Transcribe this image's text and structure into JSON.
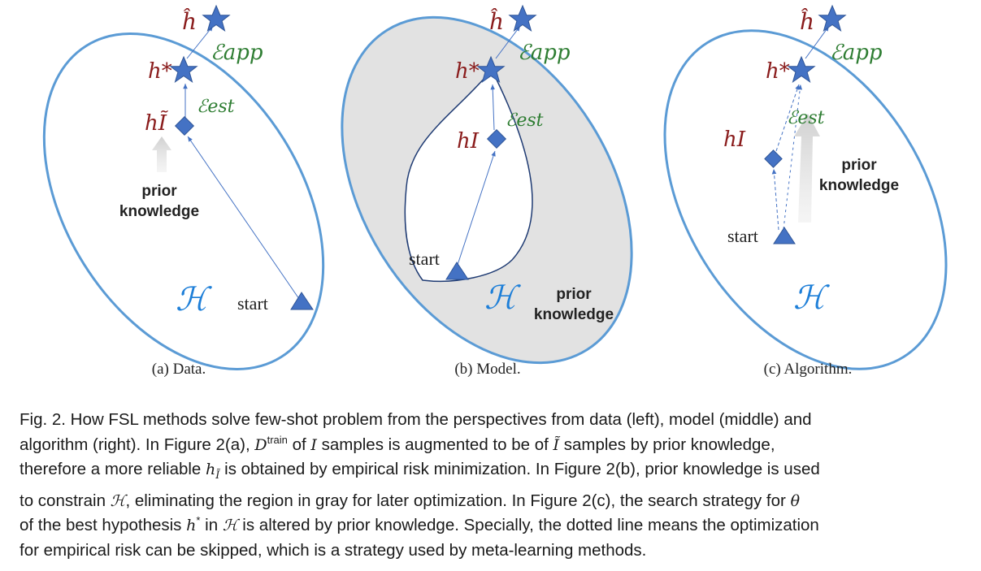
{
  "panels": [
    {
      "subcaption": "(a)  Data.",
      "h_hat": "ĥ",
      "h_star": "h*",
      "h_mid": "hĨ",
      "eps_app": "ℰapp",
      "eps_est": "ℰest",
      "prior_knowledge": [
        "prior",
        "knowledge"
      ],
      "hypothesis_space": "ℋ",
      "start": "start"
    },
    {
      "subcaption": "(b)  Model.",
      "h_hat": "ĥ",
      "h_star": "h*",
      "h_mid": "hI",
      "eps_app": "ℰapp",
      "eps_est": "ℰest",
      "prior_knowledge": [
        "prior",
        "knowledge"
      ],
      "hypothesis_space": "ℋ",
      "start": "start"
    },
    {
      "subcaption": "(c)  Algorithm.",
      "h_hat": "ĥ",
      "h_star": "h*",
      "h_mid": "hI",
      "eps_app": "ℰapp",
      "eps_est": "ℰest",
      "prior_knowledge": [
        "prior",
        "knowledge"
      ],
      "hypothesis_space": "ℋ",
      "start": "start"
    }
  ],
  "caption": {
    "line1": "Fig. 2.  How FSL methods solve few-shot problem from the perspectives from data (left), model (middle) and",
    "line2_a": "algorithm (right). In Figure 2(a), ",
    "line2_D": "D",
    "line2_train": "train",
    "line2_b": " of ",
    "line2_I": "I",
    "line2_c": " samples is augmented to be of ",
    "line2_It": "Ĩ",
    "line2_d": " samples by prior knowledge,",
    "line3_a": "therefore a more reliable ",
    "line3_h": "h",
    "line3_sub": "Ĩ",
    "line3_b": " is obtained by empirical risk minimization. In Figure 2(b), prior knowledge is used",
    "line4_a": "to constrain ",
    "line4_H": "ℋ",
    "line4_b": ", eliminating the region in gray for later optimization. In Figure 2(c), the search strategy for ",
    "line4_theta": "θ",
    "line5_a": "of the best hypothesis ",
    "line5_h": "h",
    "line5_star": "*",
    "line5_b": " in ",
    "line5_H": "ℋ",
    "line5_c": " is altered by prior knowledge. Specially, the dotted line means the optimization",
    "line6": "for empirical risk can be skipped, which is a strategy used by meta-learning methods."
  }
}
